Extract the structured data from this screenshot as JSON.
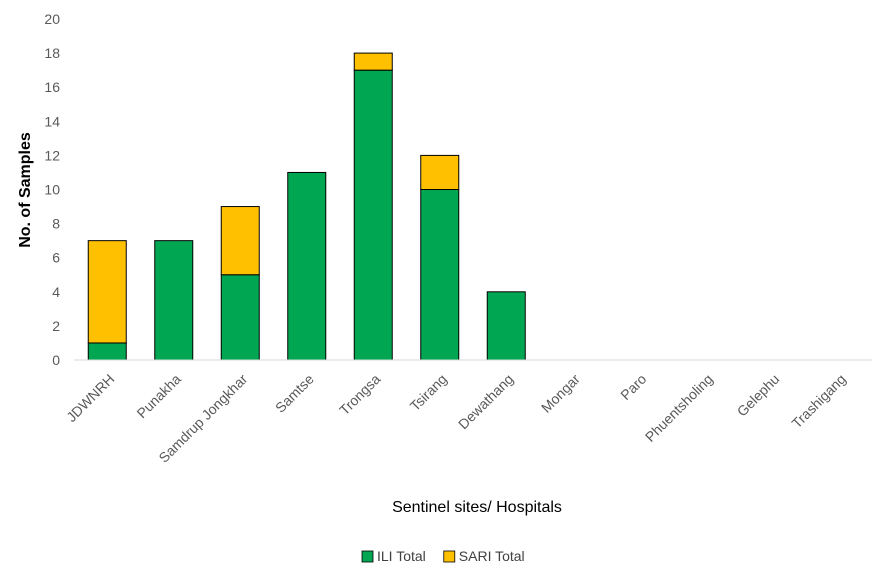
{
  "chart_data": {
    "type": "bar",
    "stacked": true,
    "categories": [
      "JDWNRH",
      "Punakha",
      "Samdrup Jongkhar",
      "Samtse",
      "Trongsa",
      "Tsirang",
      "Dewathang",
      "Mongar",
      "Paro",
      "Phuentsholing",
      "Gelephu",
      "Trashigang"
    ],
    "series": [
      {
        "name": "ILI Total",
        "color": "#00a651",
        "values": [
          1,
          7,
          5,
          11,
          17,
          10,
          4,
          0,
          0,
          0,
          0,
          0
        ]
      },
      {
        "name": "SARI Total",
        "color": "#ffc000",
        "values": [
          6,
          0,
          4,
          0,
          1,
          2,
          0,
          0,
          0,
          0,
          0,
          0
        ]
      }
    ],
    "title": "",
    "xlabel": "Sentinel sites/ Hospitals",
    "ylabel": "No. of Samples",
    "ylim": [
      0,
      20
    ],
    "yticks": [
      0,
      2,
      4,
      6,
      8,
      10,
      12,
      14,
      16,
      18,
      20
    ],
    "grid": false,
    "legend_position": "bottom"
  }
}
